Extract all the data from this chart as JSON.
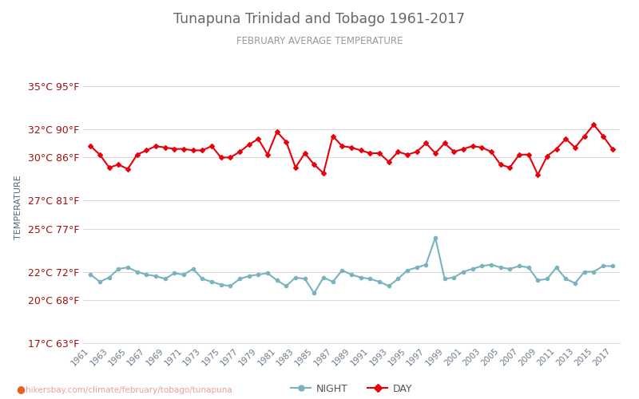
{
  "title": "Tunapuna Trinidad and Tobago 1961-2017",
  "subtitle": "FEBRUARY AVERAGE TEMPERATURE",
  "ylabel": "TEMPERATURE",
  "watermark": "hikersbay.com/climate/february/tobago/tunapuna",
  "yticks_c": [
    17,
    20,
    22,
    25,
    27,
    30,
    32,
    35
  ],
  "yticks_f": [
    63,
    68,
    72,
    77,
    81,
    86,
    90,
    95
  ],
  "years": [
    1961,
    1962,
    1963,
    1964,
    1965,
    1966,
    1967,
    1968,
    1969,
    1970,
    1971,
    1972,
    1973,
    1974,
    1975,
    1976,
    1977,
    1978,
    1979,
    1980,
    1981,
    1982,
    1983,
    1984,
    1985,
    1986,
    1987,
    1988,
    1989,
    1990,
    1991,
    1992,
    1993,
    1994,
    1995,
    1996,
    1997,
    1998,
    1999,
    2000,
    2001,
    2002,
    2003,
    2004,
    2005,
    2006,
    2007,
    2008,
    2009,
    2010,
    2011,
    2012,
    2013,
    2014,
    2015,
    2016,
    2017
  ],
  "day_temps": [
    30.8,
    30.2,
    29.3,
    29.5,
    29.2,
    30.2,
    30.5,
    30.8,
    30.7,
    30.6,
    30.6,
    30.5,
    30.5,
    30.8,
    30.0,
    30.0,
    30.4,
    30.9,
    31.3,
    30.2,
    31.8,
    31.1,
    29.3,
    30.3,
    29.5,
    28.9,
    31.5,
    30.8,
    30.7,
    30.5,
    30.3,
    30.3,
    29.7,
    30.4,
    30.2,
    30.4,
    31.0,
    30.3,
    31.0,
    30.4,
    30.6,
    30.8,
    30.7,
    30.4,
    29.5,
    29.3,
    30.2,
    30.2,
    28.8,
    30.1,
    30.6,
    31.3,
    30.7,
    31.5,
    32.3,
    31.5,
    30.6
  ],
  "night_temps": [
    21.8,
    21.3,
    21.6,
    22.2,
    22.3,
    22.0,
    21.8,
    21.7,
    21.5,
    21.9,
    21.8,
    22.2,
    21.5,
    21.3,
    21.1,
    21.0,
    21.5,
    21.7,
    21.8,
    21.9,
    21.4,
    21.0,
    21.6,
    21.5,
    20.5,
    21.6,
    21.3,
    22.1,
    21.8,
    21.6,
    21.5,
    21.3,
    21.0,
    21.5,
    22.1,
    22.3,
    22.5,
    24.4,
    21.5,
    21.6,
    22.0,
    22.2,
    22.4,
    22.5,
    22.3,
    22.2,
    22.4,
    22.3,
    21.4,
    21.5,
    22.3,
    21.5,
    21.2,
    22.0,
    22.0,
    22.4,
    22.4
  ],
  "day_color": "#e8000a",
  "night_color": "#7ab3bf",
  "title_color": "#666666",
  "subtitle_color": "#999999",
  "ylabel_color": "#4a6b78",
  "ytick_color": "#a01010",
  "grid_color": "#d8d8d8",
  "bg_color": "#ffffff",
  "watermark_color": "#e8a0a0",
  "watermark_pin_color": "#e86020",
  "ylim": [
    17,
    36
  ],
  "marker_size": 3.0,
  "line_width": 1.5,
  "xtick_fontsize": 7.5,
  "ytick_fontsize": 9
}
